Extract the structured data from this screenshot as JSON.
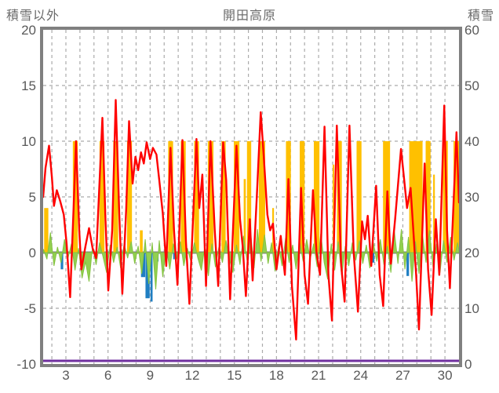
{
  "chart_data": {
    "type": "line",
    "title": "開田高原",
    "left_axis": {
      "label": "積雪以外",
      "ticks": [
        "20",
        "15",
        "10",
        "5",
        "0",
        "-5",
        "-10"
      ],
      "range": [
        -10,
        20
      ]
    },
    "right_axis": {
      "label": "積雪",
      "ticks": [
        "60",
        "50",
        "40",
        "30",
        "20",
        "10",
        "0"
      ],
      "range": [
        0,
        60
      ]
    },
    "x_axis": {
      "tick_days": [
        3,
        6,
        9,
        12,
        15,
        18,
        21,
        24,
        27,
        30
      ],
      "tick_labels": [
        "3",
        "6",
        "9",
        "12",
        "15",
        "18",
        "21",
        "24",
        "27",
        "30"
      ],
      "range_days": [
        1.38,
        31.0
      ],
      "gridline_every_days": 1
    },
    "grid": {
      "dash_color": "#ababab",
      "zero_line_color": "#808080",
      "frame_color": "#808080"
    },
    "series": [
      {
        "name": "sunshine_bars",
        "type": "bar",
        "axis": "left",
        "color": "#FFC000",
        "bars": [
          {
            "d": 1.6,
            "h": 4.0,
            "w": 0.3
          },
          {
            "d": 3.67,
            "h": 10,
            "w": 0.35
          },
          {
            "d": 5.57,
            "h": 10,
            "w": 0.35
          },
          {
            "d": 6.55,
            "h": 10,
            "w": 0.35
          },
          {
            "d": 7.53,
            "h": 10,
            "w": 0.35
          },
          {
            "d": 8.37,
            "h": 2.0,
            "w": 0.2
          },
          {
            "d": 10.46,
            "h": 10,
            "w": 0.35
          },
          {
            "d": 11.36,
            "h": 10,
            "w": 0.35
          },
          {
            "d": 12.31,
            "h": 10,
            "w": 0.35
          },
          {
            "d": 13.31,
            "h": 10,
            "w": 0.4
          },
          {
            "d": 14.23,
            "h": 10,
            "w": 0.3
          },
          {
            "d": 15.16,
            "h": 10,
            "w": 0.4
          },
          {
            "d": 15.74,
            "h": 6.6,
            "w": 0.15
          },
          {
            "d": 16.05,
            "h": 10,
            "w": 0.3
          },
          {
            "d": 16.97,
            "h": 10,
            "w": 0.45
          },
          {
            "d": 17.76,
            "h": 4.0,
            "w": 0.12
          },
          {
            "d": 18.85,
            "h": 10,
            "w": 0.35
          },
          {
            "d": 19.83,
            "h": 10,
            "w": 0.35
          },
          {
            "d": 20.86,
            "h": 10,
            "w": 0.4
          },
          {
            "d": 22.06,
            "h": 7.9,
            "w": 0.12
          },
          {
            "d": 22.48,
            "h": 10,
            "w": 0.35
          },
          {
            "d": 23.88,
            "h": 10,
            "w": 0.35
          },
          {
            "d": 25.84,
            "h": 10,
            "w": 0.5
          },
          {
            "d": 27.93,
            "h": 10,
            "w": 0.95
          },
          {
            "d": 28.8,
            "h": 10,
            "w": 0.35
          },
          {
            "d": 29.22,
            "h": 7.0,
            "w": 0.12
          },
          {
            "d": 30.03,
            "h": 10,
            "w": 0.35
          },
          {
            "d": 30.81,
            "h": 10,
            "w": 0.4
          }
        ]
      },
      {
        "name": "blue_bars",
        "type": "bar",
        "axis": "left",
        "color": "#1F7EC2",
        "bars": [
          {
            "d": 2.72,
            "h": -1.5,
            "w": 0.18
          },
          {
            "d": 8.5,
            "h": -2.2,
            "w": 0.3
          },
          {
            "d": 8.82,
            "h": -4.1,
            "w": 0.3
          },
          {
            "d": 9.1,
            "h": -4.4,
            "w": 0.15
          },
          {
            "d": 9.45,
            "h": -0.8,
            "w": 0.3
          },
          {
            "d": 10.7,
            "h": -0.6,
            "w": 0.12
          },
          {
            "d": 24.9,
            "h": -0.9,
            "w": 0.15
          },
          {
            "d": 27.35,
            "h": -2.1,
            "w": 0.18
          }
        ]
      },
      {
        "name": "green_series",
        "type": "area",
        "axis": "left",
        "color": "#92D050",
        "edge_color": "#84C341",
        "points": [
          [
            1.4,
            0.3
          ],
          [
            1.65,
            -0.6
          ],
          [
            1.9,
            1.8
          ],
          [
            2.15,
            -1.2
          ],
          [
            2.4,
            0.5
          ],
          [
            2.65,
            -0.9
          ],
          [
            2.9,
            1.2
          ],
          [
            3.15,
            -0.5
          ],
          [
            3.4,
            0.8
          ],
          [
            3.65,
            -1.6
          ],
          [
            3.9,
            0.4
          ],
          [
            4.15,
            -2.3
          ],
          [
            4.4,
            -0.8
          ],
          [
            4.65,
            -2.6
          ],
          [
            4.9,
            0.6
          ],
          [
            5.15,
            -1.1
          ],
          [
            5.4,
            0.9
          ],
          [
            5.65,
            -0.4
          ],
          [
            5.9,
            -1.8
          ],
          [
            6.15,
            0.7
          ],
          [
            6.4,
            -0.9
          ],
          [
            6.65,
            0.5
          ],
          [
            6.9,
            -1.4
          ],
          [
            7.15,
            0.8
          ],
          [
            7.4,
            -0.5
          ],
          [
            7.65,
            1.0
          ],
          [
            7.9,
            -1.0
          ],
          [
            8.15,
            0.6
          ],
          [
            8.4,
            -1.9
          ],
          [
            8.65,
            1.2
          ],
          [
            8.9,
            -2.8
          ],
          [
            9.15,
            0.9
          ],
          [
            9.4,
            -3.3
          ],
          [
            9.65,
            1.1
          ],
          [
            9.9,
            -2.2
          ],
          [
            10.15,
            0.5
          ],
          [
            10.4,
            -1.5
          ],
          [
            10.65,
            0.8
          ],
          [
            10.9,
            -0.6
          ],
          [
            11.15,
            1.0
          ],
          [
            11.4,
            -1.2
          ],
          [
            11.65,
            0.4
          ],
          [
            11.9,
            -0.8
          ],
          [
            12.15,
            0.9
          ],
          [
            12.4,
            -0.5
          ],
          [
            12.65,
            -1.6
          ],
          [
            12.9,
            0.6
          ],
          [
            13.15,
            -2.1
          ],
          [
            13.4,
            0.8
          ],
          [
            13.65,
            -1.3
          ],
          [
            13.9,
            0.5
          ],
          [
            14.15,
            -0.9
          ],
          [
            14.4,
            1.1
          ],
          [
            14.65,
            -0.6
          ],
          [
            14.9,
            -1.8
          ],
          [
            15.15,
            0.7
          ],
          [
            15.4,
            -1.1
          ],
          [
            15.65,
            1.5
          ],
          [
            15.9,
            -0.7
          ],
          [
            16.15,
            1.9
          ],
          [
            16.4,
            -1.4
          ],
          [
            16.65,
            2.1
          ],
          [
            16.9,
            -0.8
          ],
          [
            17.15,
            1.6
          ],
          [
            17.4,
            -1.0
          ],
          [
            17.65,
            0.9
          ],
          [
            17.9,
            -1.7
          ],
          [
            18.15,
            0.6
          ],
          [
            18.4,
            -1.2
          ],
          [
            18.65,
            1.3
          ],
          [
            18.9,
            -0.9
          ],
          [
            19.15,
            0.7
          ],
          [
            19.4,
            -1.5
          ],
          [
            19.65,
            1.0
          ],
          [
            19.9,
            -0.8
          ],
          [
            20.15,
            1.2
          ],
          [
            20.4,
            -0.6
          ],
          [
            20.65,
            0.8
          ],
          [
            20.9,
            -1.3
          ],
          [
            21.15,
            1.7
          ],
          [
            21.4,
            -0.9
          ],
          [
            21.65,
            -2.4
          ],
          [
            21.9,
            0.8
          ],
          [
            22.15,
            -1.6
          ],
          [
            22.4,
            1.0
          ],
          [
            22.65,
            -2.2
          ],
          [
            22.9,
            0.6
          ],
          [
            23.15,
            -1.2
          ],
          [
            23.4,
            0.9
          ],
          [
            23.65,
            -0.7
          ],
          [
            23.9,
            1.1
          ],
          [
            24.15,
            -1.0
          ],
          [
            24.4,
            0.7
          ],
          [
            24.65,
            -1.4
          ],
          [
            24.9,
            0.9
          ],
          [
            25.15,
            -0.8
          ],
          [
            25.4,
            1.2
          ],
          [
            25.65,
            -1.1
          ],
          [
            25.9,
            0.6
          ],
          [
            26.15,
            -1.8
          ],
          [
            26.4,
            1.9
          ],
          [
            26.65,
            -1.0
          ],
          [
            26.9,
            2.1
          ],
          [
            27.15,
            -1.5
          ],
          [
            27.4,
            1.4
          ],
          [
            27.65,
            -2.6
          ],
          [
            27.9,
            1.0
          ],
          [
            28.15,
            -1.9
          ],
          [
            28.4,
            1.6
          ],
          [
            28.65,
            -0.9
          ],
          [
            28.9,
            2.0
          ],
          [
            29.15,
            -1.3
          ],
          [
            29.4,
            0.8
          ],
          [
            29.65,
            -1.8
          ],
          [
            29.9,
            1.1
          ],
          [
            30.15,
            -0.9
          ],
          [
            30.4,
            1.4
          ],
          [
            30.65,
            -0.7
          ],
          [
            30.9,
            0.9
          ],
          [
            31.0,
            0.2
          ]
        ]
      },
      {
        "name": "snow_depth_line",
        "type": "line",
        "axis": "right",
        "color": "#7030A0",
        "width": 3,
        "points": [
          [
            1.38,
            0
          ],
          [
            31.0,
            0
          ]
        ]
      },
      {
        "name": "temperature_line",
        "type": "line",
        "axis": "left",
        "color": "#FF0000",
        "width": 2.4,
        "points": [
          [
            1.38,
            5.0
          ],
          [
            1.55,
            7.6
          ],
          [
            1.8,
            9.6
          ],
          [
            2.0,
            6.8
          ],
          [
            2.15,
            4.2
          ],
          [
            2.35,
            5.6
          ],
          [
            2.6,
            4.6
          ],
          [
            2.85,
            3.4
          ],
          [
            3.05,
            0.8
          ],
          [
            3.3,
            -4.0
          ],
          [
            3.55,
            4.0
          ],
          [
            3.72,
            10.0
          ],
          [
            3.95,
            2.0
          ],
          [
            4.1,
            -1.5
          ],
          [
            4.4,
            0.6
          ],
          [
            4.65,
            2.2
          ],
          [
            4.9,
            0.4
          ],
          [
            5.15,
            -0.5
          ],
          [
            5.42,
            7.0
          ],
          [
            5.6,
            12.1
          ],
          [
            5.82,
            3.0
          ],
          [
            6.02,
            -3.4
          ],
          [
            6.3,
            2.0
          ],
          [
            6.55,
            13.7
          ],
          [
            6.8,
            3.5
          ],
          [
            7.02,
            -3.7
          ],
          [
            7.3,
            4.0
          ],
          [
            7.5,
            11.8
          ],
          [
            7.75,
            6.2
          ],
          [
            7.95,
            8.6
          ],
          [
            8.15,
            7.4
          ],
          [
            8.35,
            9.0
          ],
          [
            8.55,
            8.0
          ],
          [
            8.75,
            9.9
          ],
          [
            9.0,
            8.4
          ],
          [
            9.2,
            9.4
          ],
          [
            9.45,
            8.8
          ],
          [
            9.65,
            6.5
          ],
          [
            9.9,
            3.5
          ],
          [
            10.15,
            -1.2
          ],
          [
            10.45,
            9.4
          ],
          [
            10.7,
            2.0
          ],
          [
            10.95,
            -2.9
          ],
          [
            11.3,
            10.1
          ],
          [
            11.55,
            1.0
          ],
          [
            11.8,
            -4.6
          ],
          [
            12.3,
            10.2
          ],
          [
            12.5,
            4.0
          ],
          [
            12.72,
            7.0
          ],
          [
            12.98,
            -3.0
          ],
          [
            13.3,
            10.0
          ],
          [
            13.6,
            2.0
          ],
          [
            13.85,
            -3.0
          ],
          [
            14.2,
            9.9
          ],
          [
            14.42,
            6.5
          ],
          [
            14.7,
            -4.2
          ],
          [
            15.15,
            9.6
          ],
          [
            15.4,
            3.0
          ],
          [
            15.6,
            0.5
          ],
          [
            15.82,
            -3.9
          ],
          [
            16.1,
            3.0
          ],
          [
            16.3,
            -2.5
          ],
          [
            16.6,
            5.0
          ],
          [
            16.88,
            12.6
          ],
          [
            17.1,
            8.5
          ],
          [
            17.35,
            3.4
          ],
          [
            17.55,
            2.0
          ],
          [
            17.75,
            2.6
          ],
          [
            18.0,
            -1.5
          ],
          [
            18.3,
            1.5
          ],
          [
            18.6,
            -2.0
          ],
          [
            18.85,
            6.6
          ],
          [
            19.1,
            -3.0
          ],
          [
            19.4,
            -7.8
          ],
          [
            19.75,
            5.8
          ],
          [
            20.0,
            -2.0
          ],
          [
            20.25,
            -4.6
          ],
          [
            20.6,
            5.6
          ],
          [
            20.85,
            0.0
          ],
          [
            21.1,
            -2.0
          ],
          [
            21.42,
            11.3
          ],
          [
            21.7,
            -2.0
          ],
          [
            21.95,
            -6.1
          ],
          [
            22.3,
            11.4
          ],
          [
            22.6,
            -1.0
          ],
          [
            22.85,
            -4.4
          ],
          [
            23.2,
            11.4
          ],
          [
            23.5,
            0.0
          ],
          [
            23.8,
            -5.3
          ],
          [
            24.1,
            2.8
          ],
          [
            24.3,
            1.2
          ],
          [
            24.5,
            3.3
          ],
          [
            24.75,
            -1.2
          ],
          [
            25.1,
            6.0
          ],
          [
            25.35,
            -2.0
          ],
          [
            25.6,
            -4.8
          ],
          [
            25.9,
            5.5
          ],
          [
            26.15,
            -1.0
          ],
          [
            26.45,
            3.0
          ],
          [
            26.87,
            9.3
          ],
          [
            27.1,
            6.5
          ],
          [
            27.3,
            4.0
          ],
          [
            27.55,
            5.8
          ],
          [
            27.75,
            2.0
          ],
          [
            27.95,
            -2.0
          ],
          [
            28.15,
            -6.9
          ],
          [
            28.55,
            8.0
          ],
          [
            28.8,
            -1.5
          ],
          [
            29.05,
            -5.6
          ],
          [
            29.35,
            3.0
          ],
          [
            29.6,
            -2.0
          ],
          [
            29.95,
            13.2
          ],
          [
            30.15,
            2.0
          ],
          [
            30.35,
            -3.2
          ],
          [
            30.6,
            4.0
          ],
          [
            30.82,
            10.8
          ],
          [
            31.0,
            4.5
          ]
        ]
      }
    ]
  }
}
